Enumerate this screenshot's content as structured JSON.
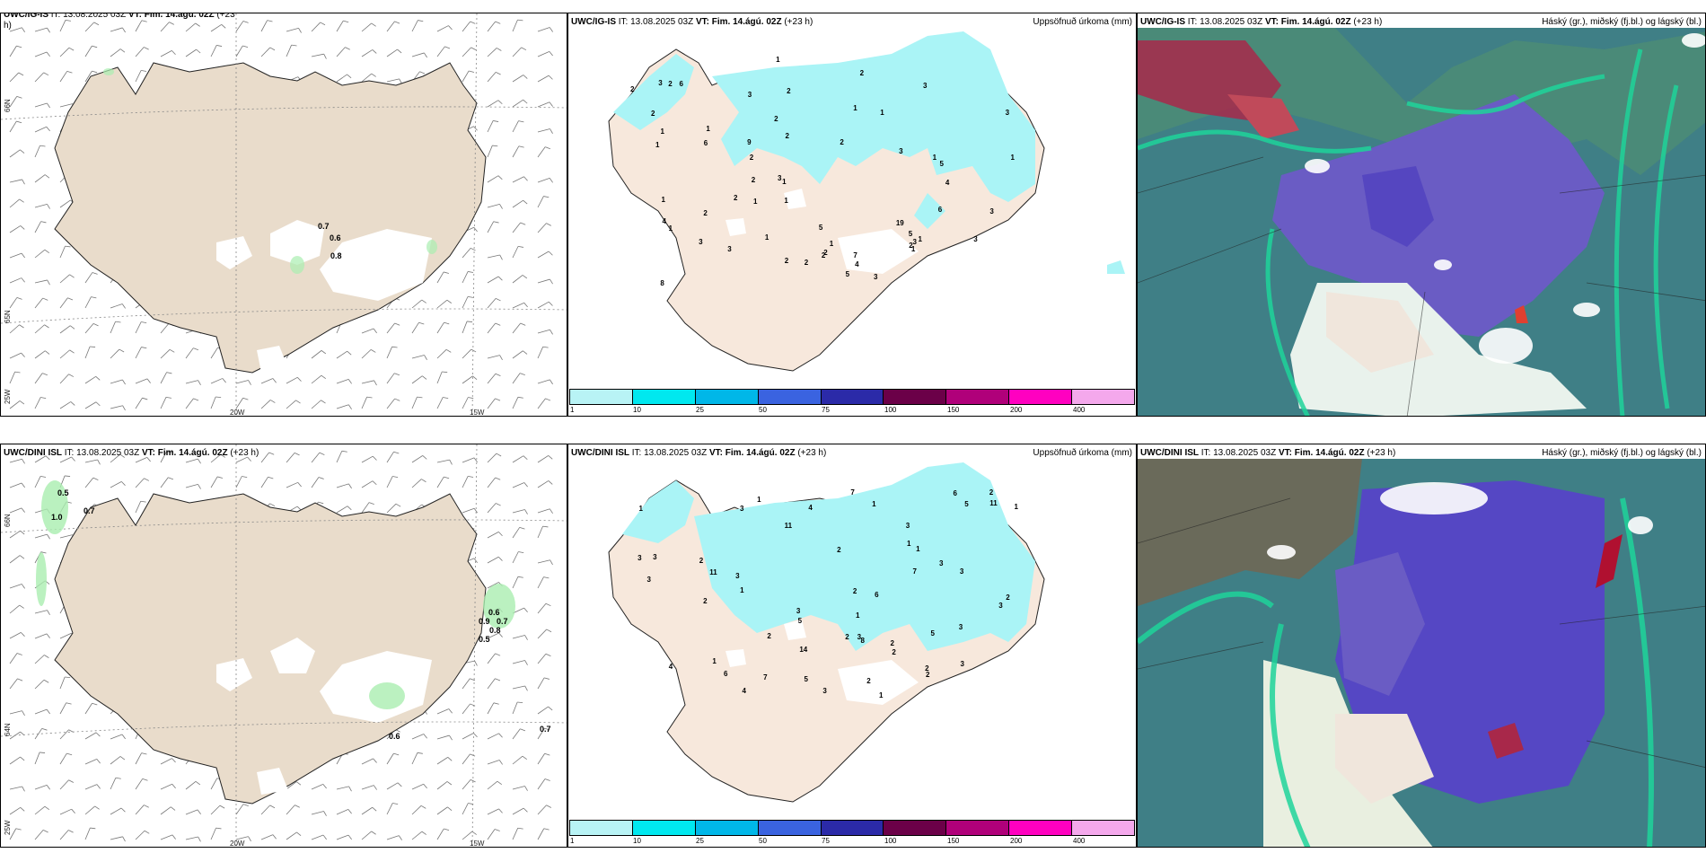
{
  "rows": [
    {
      "wind": {
        "model": "UWC/IG-IS",
        "it": "IT: 13.08.2025 03Z",
        "vt_label": "VT:",
        "vt": "Fim. 14.ágú. 02Z",
        "lead": "(+23",
        "lead2": "h)",
        "labels": [
          "0.7",
          "0.6",
          "0.8"
        ]
      },
      "precip": {
        "model": "UWC/IG-IS",
        "it": "IT: 13.08.2025 03Z",
        "vt_label": "VT:",
        "vt": "Fim. 14.ágú. 02Z",
        "lead": "(+23 h)",
        "right": "Uppsöfnuð úrkoma (mm)",
        "numbers": [
          "2",
          "1",
          "2",
          "2",
          "1",
          "1",
          "2",
          "1",
          "1",
          "1",
          "2",
          "3",
          "2",
          "3",
          "3",
          "4",
          "5",
          "3",
          "3",
          "5",
          "6",
          "4",
          "6",
          "2",
          "7",
          "3",
          "2",
          "5",
          "3",
          "9",
          "3",
          "19",
          "6",
          "5",
          "2",
          "2",
          "2",
          "1",
          "1",
          "2",
          "8",
          "3",
          "2",
          "4",
          "1",
          "1",
          "1",
          "1",
          "1",
          "2",
          "2",
          "2",
          "3",
          "3",
          "3",
          "1",
          "1",
          "2",
          "1",
          "1"
        ]
      },
      "cloud": {
        "model": "UWC/IG-IS",
        "it": "IT: 13.08.2025 03Z",
        "vt_label": "VT:",
        "vt": "Fim. 14.ágú. 02Z",
        "lead": "(+23 h)",
        "right": "Háský (gr.), miðský (fj.bl.) og lágský (bl.)"
      }
    },
    {
      "wind": {
        "model": "UWC/DINI ISL",
        "it": "IT: 13.08.2025 03Z",
        "vt_label": "VT:",
        "vt": "Fim. 14.ágú. 02Z",
        "lead": "(+23 h)",
        "labels": [
          "0.5",
          "1.0",
          "0.7",
          "0.6",
          "0.9",
          "0.7",
          "0.8",
          "0.5",
          "0.6",
          "0.7"
        ]
      },
      "precip": {
        "model": "UWC/DINI ISL",
        "it": "IT: 13.08.2025 03Z",
        "vt_label": "VT:",
        "vt": "Fim. 14.ágú. 02Z",
        "lead": "(+23 h)",
        "right": "Uppsöfnuð úrkoma (mm)",
        "numbers": [
          "1",
          "3",
          "1",
          "2",
          "3",
          "2",
          "3",
          "1",
          "5",
          "6",
          "4",
          "3",
          "3",
          "3",
          "7",
          "6",
          "3",
          "5",
          "5",
          "3",
          "2",
          "8",
          "4",
          "2",
          "6",
          "1",
          "2",
          "11",
          "3",
          "11",
          "2",
          "2",
          "3",
          "7",
          "1",
          "5",
          "7",
          "3",
          "2",
          "2",
          "4",
          "2",
          "1",
          "3",
          "1",
          "3",
          "2",
          "14",
          "1",
          "11",
          "2",
          "2",
          "3",
          "1",
          "1"
        ]
      },
      "cloud": {
        "model": "UWC/DINI ISL",
        "it": "IT: 13.08.2025 03Z",
        "vt_label": "VT:",
        "vt": "Fim. 14.ágú. 02Z",
        "lead": "(+23 h)",
        "right": "Háský (gr.), miðský (fj.bl.) og lágský (bl.)"
      }
    }
  ],
  "axes": {
    "lat_n": "66N",
    "lat_s": "64N",
    "lat_s2": "65N",
    "lon_w": "20W",
    "lon_e": "15W",
    "lon_far": "25W"
  },
  "legend": {
    "ticks": [
      "1",
      "10",
      "25",
      "50",
      "75",
      "100",
      "150",
      "200",
      "400"
    ],
    "colors": [
      "#b8f3f5",
      "#00e8ef",
      "#00b7e8",
      "#3a63e0",
      "#2b2aa8",
      "#6b0048",
      "#b0007a",
      "#ff00c0",
      "#f4a8ec"
    ]
  },
  "colors": {
    "land": "#e9dccb",
    "land2": "#f7e8dc",
    "precip": "#aaf4f6",
    "sea": "#ffffff"
  }
}
